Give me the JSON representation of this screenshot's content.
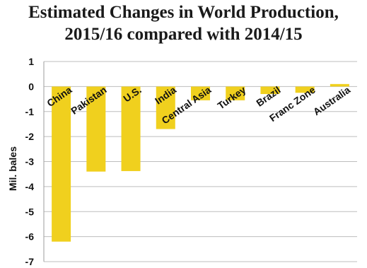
{
  "chart_data": {
    "type": "bar",
    "title_line1": "Estimated Changes in World Production,",
    "title_line2": "2015/16 compared with 2014/15",
    "ylabel": "Mil. bales",
    "xlabel": "",
    "ylim": [
      -7,
      1
    ],
    "yticks": [
      1,
      0,
      -1,
      -2,
      -3,
      -4,
      -5,
      -6,
      -7
    ],
    "grid": true,
    "bar_color": "#f0d01e",
    "categories": [
      "China",
      "Pakistan",
      "U.S.",
      "India",
      "Central Asia",
      "Turkey",
      "Brazil",
      "Franc Zone",
      "Australia"
    ],
    "values": [
      -6.2,
      -3.4,
      -3.38,
      -1.7,
      -0.55,
      -0.55,
      -0.3,
      -0.25,
      0.1
    ]
  }
}
